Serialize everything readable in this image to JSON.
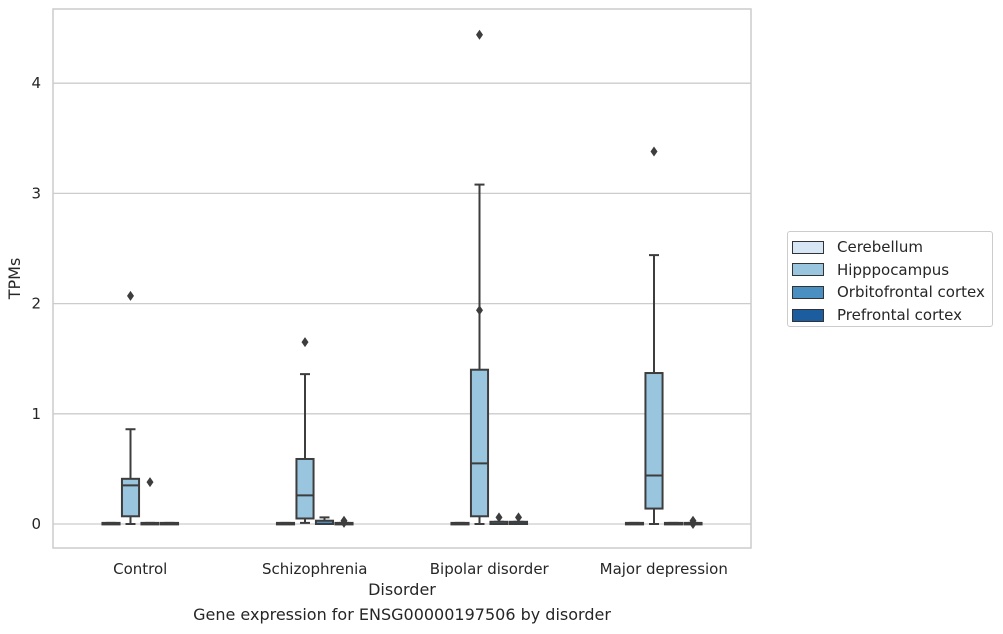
{
  "chart_data": {
    "type": "box",
    "title": "",
    "caption": "Gene expression for ENSG00000197506 by disorder",
    "xlabel": "Disorder",
    "ylabel": "TPMs",
    "ylim": [
      -0.22,
      4.7
    ],
    "yticks": [
      "0",
      "1",
      "2",
      "3",
      "4"
    ],
    "grid": true,
    "legend_position": "right",
    "categories": [
      "Control",
      "Schizophrenia",
      "Bipolar disorder",
      "Major depression"
    ],
    "series": [
      {
        "name": "Cerebellum",
        "color": "#d6e6f4",
        "boxes": [
          {
            "q1": 0.0,
            "median": 0.0,
            "q3": 0.01,
            "whislo": 0.0,
            "whishi": 0.01,
            "fliers": []
          },
          {
            "q1": 0.0,
            "median": 0.0,
            "q3": 0.01,
            "whislo": 0.0,
            "whishi": 0.01,
            "fliers": []
          },
          {
            "q1": 0.0,
            "median": 0.0,
            "q3": 0.01,
            "whislo": 0.0,
            "whishi": 0.01,
            "fliers": []
          },
          {
            "q1": 0.0,
            "median": 0.0,
            "q3": 0.01,
            "whislo": 0.0,
            "whishi": 0.01,
            "fliers": []
          }
        ]
      },
      {
        "name": "Hipppocampus",
        "color": "#9ac5de",
        "boxes": [
          {
            "q1": 0.07,
            "median": 0.35,
            "q3": 0.41,
            "whislo": 0.0,
            "whishi": 0.86,
            "fliers": [
              2.07
            ]
          },
          {
            "q1": 0.05,
            "median": 0.26,
            "q3": 0.59,
            "whislo": 0.01,
            "whishi": 1.36,
            "fliers": [
              1.65
            ]
          },
          {
            "q1": 0.07,
            "median": 0.55,
            "q3": 1.4,
            "whislo": 0.0,
            "whishi": 3.08,
            "fliers": [
              4.44,
              1.94
            ]
          },
          {
            "q1": 0.14,
            "median": 0.44,
            "q3": 1.37,
            "whislo": 0.0,
            "whishi": 2.44,
            "fliers": [
              3.38
            ]
          }
        ]
      },
      {
        "name": "Orbitofrontal cortex",
        "color": "#4a8fc2",
        "boxes": [
          {
            "q1": 0.0,
            "median": 0.0,
            "q3": 0.01,
            "whislo": 0.0,
            "whishi": 0.01,
            "fliers": [
              0.38
            ]
          },
          {
            "q1": 0.0,
            "median": 0.0,
            "q3": 0.03,
            "whislo": 0.0,
            "whishi": 0.06,
            "fliers": []
          },
          {
            "q1": 0.0,
            "median": 0.0,
            "q3": 0.02,
            "whislo": 0.0,
            "whishi": 0.02,
            "fliers": [
              0.06
            ]
          },
          {
            "q1": 0.0,
            "median": 0.0,
            "q3": 0.01,
            "whislo": 0.0,
            "whishi": 0.01,
            "fliers": []
          }
        ]
      },
      {
        "name": "Prefrontal cortex",
        "color": "#1b5d9e",
        "boxes": [
          {
            "q1": 0.0,
            "median": 0.0,
            "q3": 0.01,
            "whislo": 0.0,
            "whishi": 0.01,
            "fliers": []
          },
          {
            "q1": 0.0,
            "median": 0.0,
            "q3": 0.01,
            "whislo": 0.0,
            "whishi": 0.01,
            "fliers": [
              0.03,
              0.01
            ]
          },
          {
            "q1": 0.0,
            "median": 0.0,
            "q3": 0.02,
            "whislo": 0.0,
            "whishi": 0.02,
            "fliers": [
              0.06
            ]
          },
          {
            "q1": 0.0,
            "median": 0.0,
            "q3": 0.01,
            "whislo": 0.0,
            "whishi": 0.01,
            "fliers": [
              0.03,
              0.0
            ]
          }
        ]
      }
    ]
  }
}
